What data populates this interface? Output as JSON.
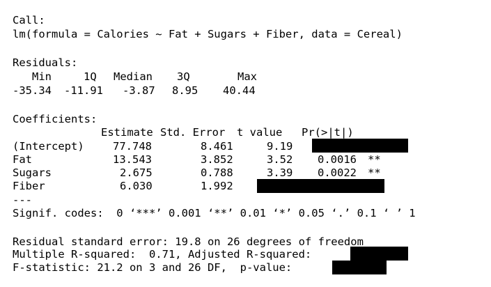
{
  "output": {
    "call_header": "Call:",
    "call_formula": "lm(formula = Calories ~ Fat + Sugars + Fiber, data = Cereal)",
    "residuals_header": "Residuals:",
    "residual_stat_headers": [
      "Min",
      "1Q",
      "Median",
      "3Q",
      "Max"
    ],
    "residual_stat_values": [
      "-35.34",
      "-11.91",
      "-3.87",
      "8.95",
      "40.44"
    ],
    "coefficients_header": "Coefficients:",
    "coef_columns": [
      "Estimate",
      "Std. Error",
      "t value",
      "Pr(>|t|)"
    ],
    "coef_rows": [
      {
        "name": "(Intercept)",
        "estimate": "77.748",
        "std_error": "8.461",
        "t_value": "9.19",
        "p_value": "",
        "signif": ""
      },
      {
        "name": "Fat",
        "estimate": "13.543",
        "std_error": "3.852",
        "t_value": "3.52",
        "p_value": "0.0016",
        "signif": "**"
      },
      {
        "name": "Sugars",
        "estimate": "2.675",
        "std_error": "0.788",
        "t_value": "3.39",
        "p_value": "0.0022",
        "signif": "**"
      },
      {
        "name": "Fiber",
        "estimate": "6.030",
        "std_error": "1.992",
        "t_value": "",
        "p_value": "",
        "signif": ""
      }
    ],
    "separator": "---",
    "signif_codes": "Signif. codes:  0 ‘***’ 0.001 ‘**’ 0.01 ‘*’ 0.05 ‘.’ 0.1 ‘ ’ 1",
    "rse_line": "Residual standard error: 19.8 on 26 degrees of freedom",
    "r2_prefix": "Multiple R-squared:  0.71, Adjusted R-squared:",
    "f_prefix": "F-statistic: 21.2 on 3 and 26 DF,  p-value:"
  }
}
